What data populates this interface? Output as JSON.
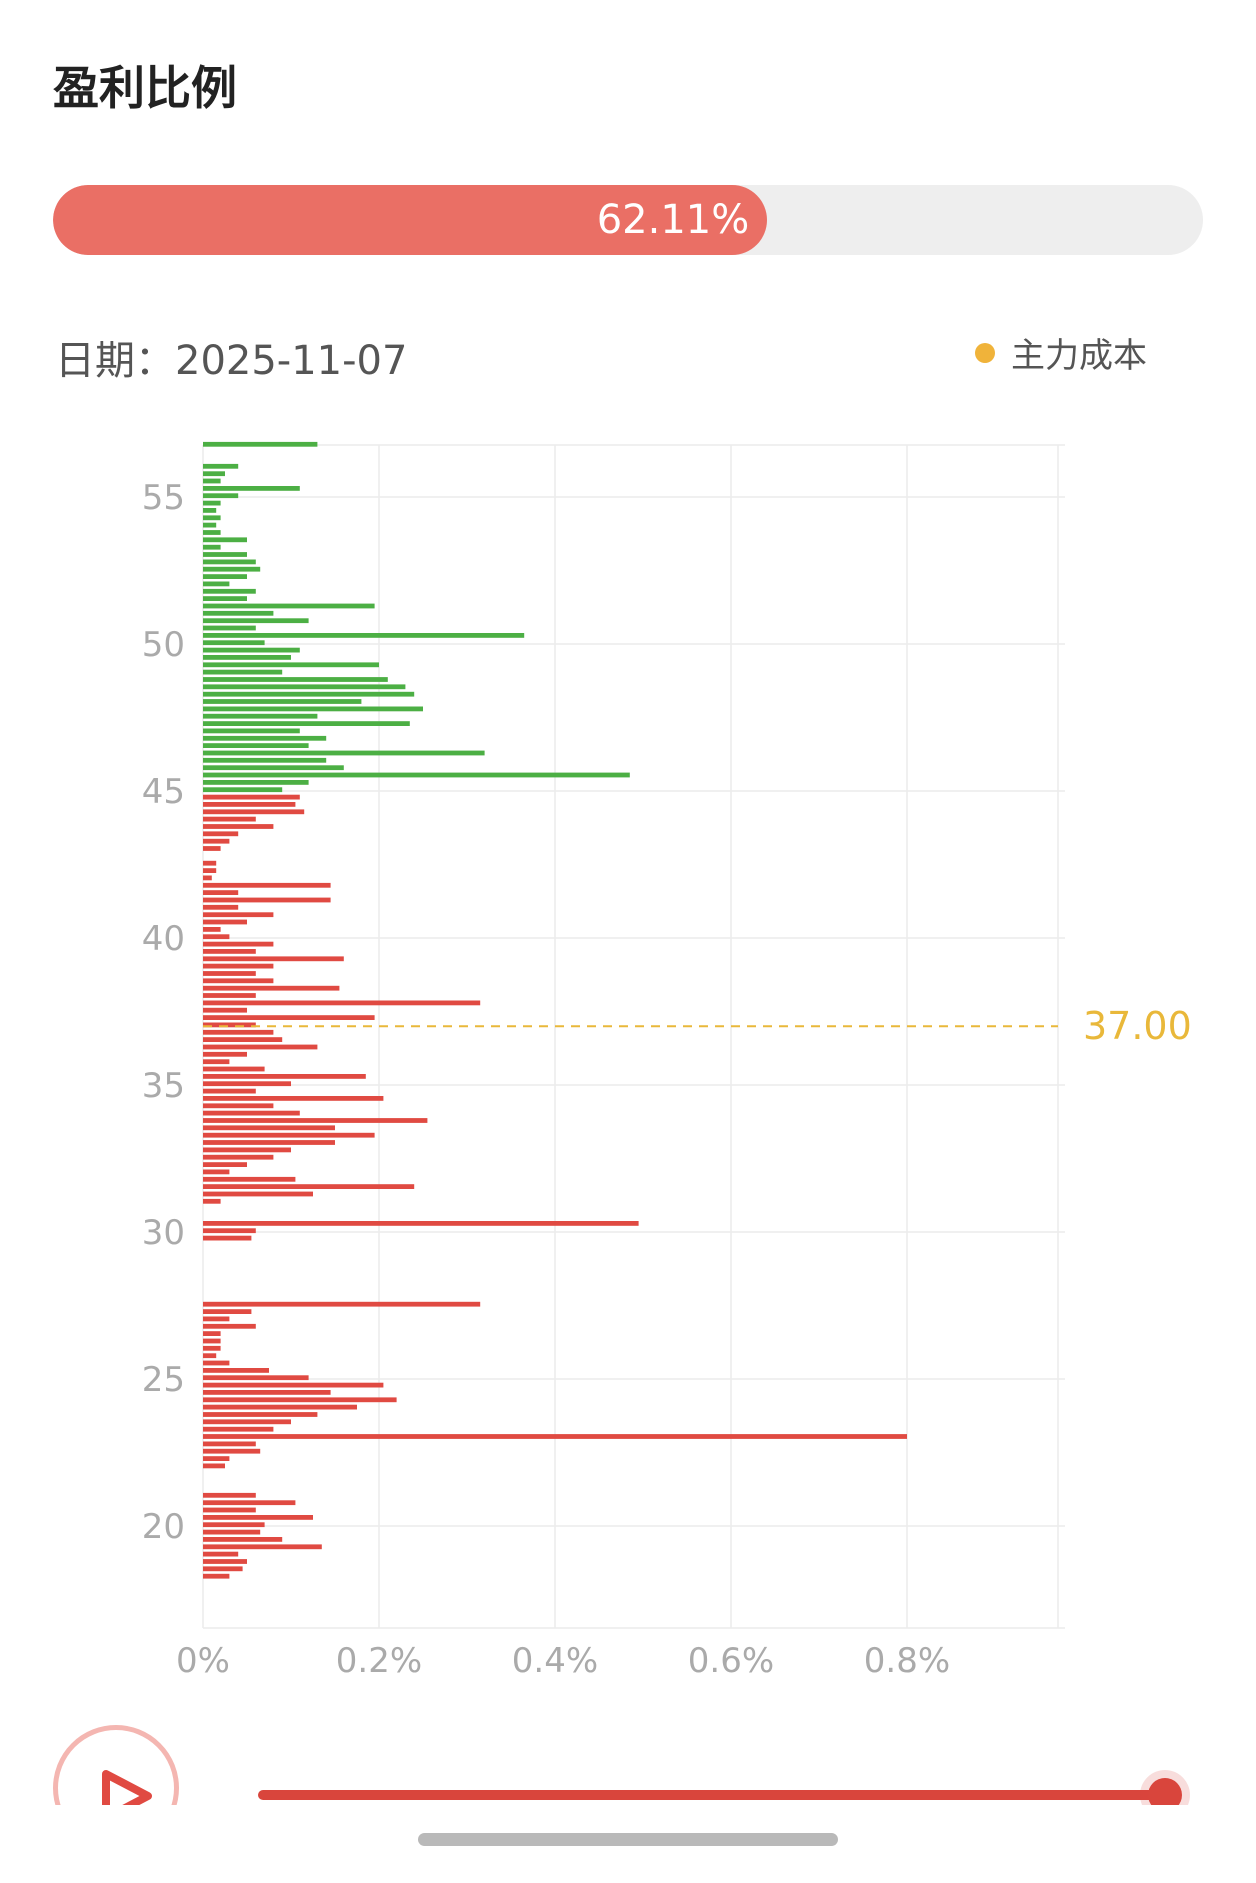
{
  "title": "盈利比例",
  "progress": {
    "label": "62.11%",
    "value": 0.6211
  },
  "date_label": "日期：2025-11-07",
  "legend_label": "主力成本",
  "colors": {
    "profit": "#e04a42",
    "loss": "#4caf44",
    "cost_line": "#e9b83a",
    "progress": "#ea6f65"
  },
  "chart_data": {
    "type": "bar",
    "orientation": "horizontal",
    "title": "",
    "xlabel": "",
    "ylabel": "",
    "x_ticks": [
      "0%",
      "0.2%",
      "0.4%",
      "0.6%",
      "0.8%"
    ],
    "y_ticks": [
      "20",
      "25",
      "30",
      "35",
      "40",
      "45",
      "50",
      "55"
    ],
    "xlim": [
      0,
      0.97
    ],
    "ylim": [
      17.1,
      57.1
    ],
    "grid": true,
    "cost_line": {
      "value": 37.0,
      "label": "37.00"
    },
    "profit_below": 45.0,
    "price_step": 0.25,
    "bars": [
      [
        56.75,
        0.13
      ],
      [
        56.0,
        0.04
      ],
      [
        55.75,
        0.025
      ],
      [
        55.5,
        0.02
      ],
      [
        55.25,
        0.11
      ],
      [
        55.0,
        0.04
      ],
      [
        54.75,
        0.02
      ],
      [
        54.5,
        0.015
      ],
      [
        54.25,
        0.02
      ],
      [
        54.0,
        0.015
      ],
      [
        53.75,
        0.02
      ],
      [
        53.5,
        0.05
      ],
      [
        53.25,
        0.02
      ],
      [
        53.0,
        0.05
      ],
      [
        52.75,
        0.06
      ],
      [
        52.5,
        0.065
      ],
      [
        52.25,
        0.05
      ],
      [
        52.0,
        0.03
      ],
      [
        51.75,
        0.06
      ],
      [
        51.5,
        0.05
      ],
      [
        51.25,
        0.195
      ],
      [
        51.0,
        0.08
      ],
      [
        50.75,
        0.12
      ],
      [
        50.5,
        0.06
      ],
      [
        50.25,
        0.365
      ],
      [
        50.0,
        0.07
      ],
      [
        49.75,
        0.11
      ],
      [
        49.5,
        0.1
      ],
      [
        49.25,
        0.2
      ],
      [
        49.0,
        0.09
      ],
      [
        48.75,
        0.21
      ],
      [
        48.5,
        0.23
      ],
      [
        48.25,
        0.24
      ],
      [
        48.0,
        0.18
      ],
      [
        47.75,
        0.25
      ],
      [
        47.5,
        0.13
      ],
      [
        47.25,
        0.235
      ],
      [
        47.0,
        0.11
      ],
      [
        46.75,
        0.14
      ],
      [
        46.5,
        0.12
      ],
      [
        46.25,
        0.32
      ],
      [
        46.0,
        0.14
      ],
      [
        45.75,
        0.16
      ],
      [
        45.5,
        0.485
      ],
      [
        45.25,
        0.12
      ],
      [
        45.0,
        0.09
      ],
      [
        44.75,
        0.11
      ],
      [
        44.5,
        0.105
      ],
      [
        44.25,
        0.115
      ],
      [
        44.0,
        0.06
      ],
      [
        43.75,
        0.08
      ],
      [
        43.5,
        0.04
      ],
      [
        43.25,
        0.03
      ],
      [
        43.0,
        0.02
      ],
      [
        42.5,
        0.015
      ],
      [
        42.25,
        0.015
      ],
      [
        42.0,
        0.01
      ],
      [
        41.75,
        0.145
      ],
      [
        41.5,
        0.04
      ],
      [
        41.25,
        0.145
      ],
      [
        41.0,
        0.04
      ],
      [
        40.75,
        0.08
      ],
      [
        40.5,
        0.05
      ],
      [
        40.25,
        0.02
      ],
      [
        40.0,
        0.03
      ],
      [
        39.75,
        0.08
      ],
      [
        39.5,
        0.06
      ],
      [
        39.25,
        0.16
      ],
      [
        39.0,
        0.08
      ],
      [
        38.75,
        0.06
      ],
      [
        38.5,
        0.08
      ],
      [
        38.25,
        0.155
      ],
      [
        38.0,
        0.06
      ],
      [
        37.75,
        0.315
      ],
      [
        37.5,
        0.05
      ],
      [
        37.25,
        0.195
      ],
      [
        37.0,
        0.06
      ],
      [
        36.75,
        0.08
      ],
      [
        36.5,
        0.09
      ],
      [
        36.25,
        0.13
      ],
      [
        36.0,
        0.05
      ],
      [
        35.75,
        0.03
      ],
      [
        35.5,
        0.07
      ],
      [
        35.25,
        0.185
      ],
      [
        35.0,
        0.1
      ],
      [
        34.75,
        0.06
      ],
      [
        34.5,
        0.205
      ],
      [
        34.25,
        0.08
      ],
      [
        34.0,
        0.11
      ],
      [
        33.75,
        0.255
      ],
      [
        33.5,
        0.15
      ],
      [
        33.25,
        0.195
      ],
      [
        33.0,
        0.15
      ],
      [
        32.75,
        0.1
      ],
      [
        32.5,
        0.08
      ],
      [
        32.25,
        0.05
      ],
      [
        32.0,
        0.03
      ],
      [
        31.75,
        0.105
      ],
      [
        31.5,
        0.24
      ],
      [
        31.25,
        0.125
      ],
      [
        31.0,
        0.02
      ],
      [
        30.25,
        0.495
      ],
      [
        30.0,
        0.06
      ],
      [
        29.75,
        0.055
      ],
      [
        27.5,
        0.315
      ],
      [
        27.25,
        0.055
      ],
      [
        27.0,
        0.03
      ],
      [
        26.75,
        0.06
      ],
      [
        26.5,
        0.02
      ],
      [
        26.25,
        0.02
      ],
      [
        26.0,
        0.02
      ],
      [
        25.75,
        0.015
      ],
      [
        25.5,
        0.03
      ],
      [
        25.25,
        0.075
      ],
      [
        25.0,
        0.12
      ],
      [
        24.75,
        0.205
      ],
      [
        24.5,
        0.145
      ],
      [
        24.25,
        0.22
      ],
      [
        24.0,
        0.175
      ],
      [
        23.75,
        0.13
      ],
      [
        23.5,
        0.1
      ],
      [
        23.25,
        0.08
      ],
      [
        23.0,
        0.8
      ],
      [
        22.75,
        0.06
      ],
      [
        22.5,
        0.065
      ],
      [
        22.25,
        0.03
      ],
      [
        22.0,
        0.025
      ],
      [
        21.0,
        0.06
      ],
      [
        20.75,
        0.105
      ],
      [
        20.5,
        0.06
      ],
      [
        20.25,
        0.125
      ],
      [
        20.0,
        0.07
      ],
      [
        19.75,
        0.065
      ],
      [
        19.5,
        0.09
      ],
      [
        19.25,
        0.135
      ],
      [
        19.0,
        0.04
      ],
      [
        18.75,
        0.05
      ],
      [
        18.5,
        0.045
      ],
      [
        18.25,
        0.03
      ]
    ]
  }
}
